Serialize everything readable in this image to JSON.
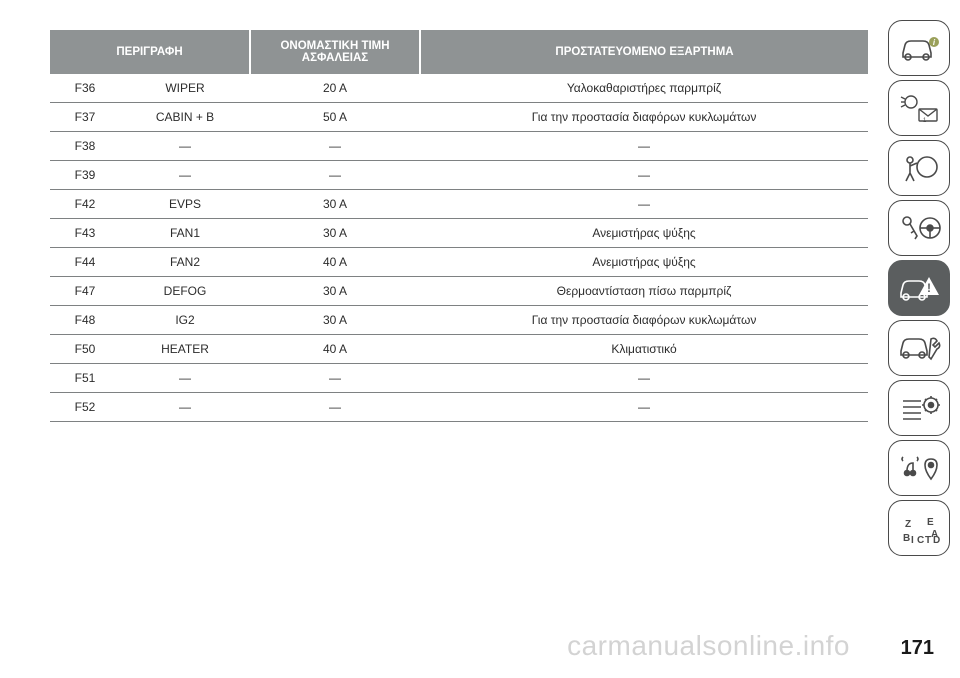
{
  "table": {
    "headers": {
      "desc": "ΠΕΡΙΓΡΑΦΗ",
      "rating": "ΟΝΟΜΑΣΤΙΚΗ ΤΙΜΗ ΑΣΦΑΛΕΙΑΣ",
      "protected": "ΠΡΟΣΤΑΤΕΥΟΜΕΝΟ ΕΞΑΡΤΗΜΑ"
    },
    "rows": [
      {
        "code": "F36",
        "name": "WIPER",
        "rating": "20 A",
        "protected": "Υαλοκαθαριστήρες παρμπρίζ"
      },
      {
        "code": "F37",
        "name": "CABIN + B",
        "rating": "50 A",
        "protected": "Για την προστασία διαφόρων κυκλωμάτων"
      },
      {
        "code": "F38",
        "name": "—",
        "rating": "—",
        "protected": "—"
      },
      {
        "code": "F39",
        "name": "—",
        "rating": "—",
        "protected": "—"
      },
      {
        "code": "F42",
        "name": "EVPS",
        "rating": "30 A",
        "protected": "—"
      },
      {
        "code": "F43",
        "name": "FAN1",
        "rating": "30 A",
        "protected": "Ανεμιστήρας ψύξης"
      },
      {
        "code": "F44",
        "name": "FAN2",
        "rating": "40 A",
        "protected": "Ανεμιστήρας ψύξης"
      },
      {
        "code": "F47",
        "name": "DEFOG",
        "rating": "30 A",
        "protected": "Θερμοαντίσταση πίσω παρμπρίζ"
      },
      {
        "code": "F48",
        "name": "IG2",
        "rating": "30 A",
        "protected": "Για την προστασία διαφόρων κυκλωμάτων"
      },
      {
        "code": "F50",
        "name": "HEATER",
        "rating": "40 A",
        "protected": "Κλιματιστικό"
      },
      {
        "code": "F51",
        "name": "—",
        "rating": "—",
        "protected": "—"
      },
      {
        "code": "F52",
        "name": "—",
        "rating": "—",
        "protected": "—"
      }
    ],
    "header_bg": "#8f9394",
    "header_fg": "#ffffff",
    "row_border": "#7e8182",
    "text_color": "#2c2c2c",
    "header_fontsize": 11.5,
    "cell_fontsize": 12
  },
  "sidebar": {
    "icons": [
      {
        "name": "car-info-icon",
        "active": false
      },
      {
        "name": "light-message-icon",
        "active": false
      },
      {
        "name": "airbag-icon",
        "active": false
      },
      {
        "name": "key-steering-icon",
        "active": false
      },
      {
        "name": "car-warning-icon",
        "active": true
      },
      {
        "name": "car-service-icon",
        "active": false
      },
      {
        "name": "settings-icon",
        "active": false
      },
      {
        "name": "media-location-icon",
        "active": false
      },
      {
        "name": "alphabet-icon",
        "active": false
      }
    ],
    "border_color": "#4a4a4a",
    "active_bg": "#5b5e5f",
    "border_radius": 14
  },
  "watermark": "carmanualsonline.info",
  "page_number": "171"
}
